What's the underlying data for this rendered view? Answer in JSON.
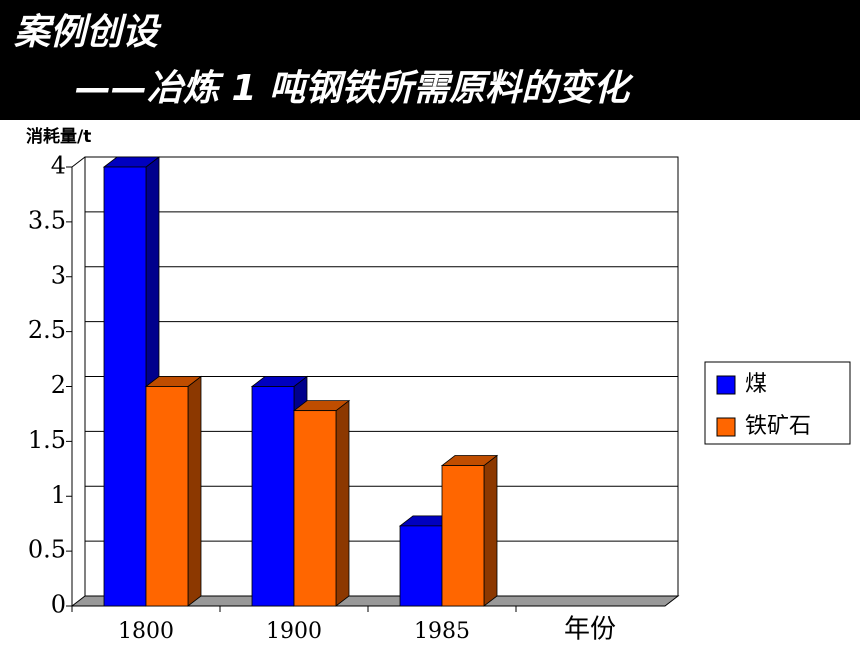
{
  "chart_data": {
    "type": "bar",
    "title": "案例创设",
    "subtitle": "——冶炼 1 吨钢铁所需原料的变化",
    "y_label": "消耗量/t",
    "x_label": "年份",
    "categories": [
      "1800",
      "1900",
      "1985"
    ],
    "series": [
      {
        "name": "煤",
        "color": "#0000ff",
        "values": [
          4,
          2,
          0.73
        ]
      },
      {
        "name": "铁矿石",
        "color": "#ff6600",
        "values": [
          2,
          1.78,
          1.28
        ]
      }
    ],
    "ylim": [
      0,
      4
    ],
    "yticks": [
      0,
      0.5,
      1,
      1.5,
      2,
      2.5,
      3,
      3.5,
      4
    ],
    "grid": true
  }
}
